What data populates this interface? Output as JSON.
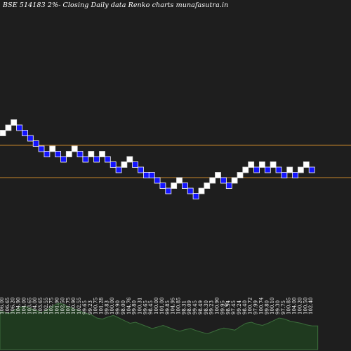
{
  "chart_data": {
    "type": "renko",
    "title": "BSE 514183 2%-  Closing Daily data  Renko  charts munafasutra.in",
    "colors": {
      "background": "#1e1e1e",
      "up_brick": "#ffffff",
      "down_brick": "#1414ff",
      "reference_line": "#c8862a",
      "volume_fill": "#1f3a1f",
      "volume_line": "#3c6e3c"
    },
    "reference_lines": [
      {
        "name": "upper",
        "price": 105.2
      },
      {
        "name": "lower",
        "price": 102.4
      }
    ],
    "bricks": [
      {
        "level": 0,
        "dir": "up"
      },
      {
        "level": 1,
        "dir": "up"
      },
      {
        "level": 2,
        "dir": "up"
      },
      {
        "level": 1,
        "dir": "down"
      },
      {
        "level": 0,
        "dir": "down"
      },
      {
        "level": -1,
        "dir": "down"
      },
      {
        "level": -2,
        "dir": "down"
      },
      {
        "level": -3,
        "dir": "down"
      },
      {
        "level": -4,
        "dir": "down"
      },
      {
        "level": -3,
        "dir": "up"
      },
      {
        "level": -4,
        "dir": "down"
      },
      {
        "level": -5,
        "dir": "down"
      },
      {
        "level": -4,
        "dir": "up"
      },
      {
        "level": -3,
        "dir": "up"
      },
      {
        "level": -4,
        "dir": "down"
      },
      {
        "level": -5,
        "dir": "down"
      },
      {
        "level": -4,
        "dir": "up"
      },
      {
        "level": -5,
        "dir": "down"
      },
      {
        "level": -4,
        "dir": "up"
      },
      {
        "level": -5,
        "dir": "down"
      },
      {
        "level": -6,
        "dir": "down"
      },
      {
        "level": -7,
        "dir": "down"
      },
      {
        "level": -6,
        "dir": "up"
      },
      {
        "level": -5,
        "dir": "up"
      },
      {
        "level": -6,
        "dir": "down"
      },
      {
        "level": -7,
        "dir": "down"
      },
      {
        "level": -8,
        "dir": "down"
      },
      {
        "level": -8,
        "dir": "down"
      },
      {
        "level": -9,
        "dir": "down"
      },
      {
        "level": -10,
        "dir": "down"
      },
      {
        "level": -11,
        "dir": "down"
      },
      {
        "level": -10,
        "dir": "up"
      },
      {
        "level": -9,
        "dir": "up"
      },
      {
        "level": -10,
        "dir": "down"
      },
      {
        "level": -11,
        "dir": "down"
      },
      {
        "level": -12,
        "dir": "down"
      },
      {
        "level": -11,
        "dir": "up"
      },
      {
        "level": -10,
        "dir": "up"
      },
      {
        "level": -9,
        "dir": "up"
      },
      {
        "level": -8,
        "dir": "up"
      },
      {
        "level": -9,
        "dir": "down"
      },
      {
        "level": -10,
        "dir": "down"
      },
      {
        "level": -9,
        "dir": "up"
      },
      {
        "level": -8,
        "dir": "up"
      },
      {
        "level": -7,
        "dir": "up"
      },
      {
        "level": -6,
        "dir": "up"
      },
      {
        "level": -7,
        "dir": "down"
      },
      {
        "level": -6,
        "dir": "up"
      },
      {
        "level": -7,
        "dir": "down"
      },
      {
        "level": -6,
        "dir": "up"
      },
      {
        "level": -7,
        "dir": "down"
      },
      {
        "level": -8,
        "dir": "down"
      },
      {
        "level": -7,
        "dir": "up"
      },
      {
        "level": -8,
        "dir": "down"
      },
      {
        "level": -7,
        "dir": "up"
      },
      {
        "level": -6,
        "dir": "up"
      },
      {
        "level": -7,
        "dir": "down"
      }
    ],
    "price_labels": [
      "106.00",
      "106.65",
      "106.20",
      "104.90",
      "104.00",
      "103.65",
      "104.00",
      "103.65",
      "102.55",
      "102.75",
      "101.90",
      "102.50",
      "101.75",
      "100.90",
      "102.55",
      "99.65",
      "99.23",
      "100.75",
      "101.28",
      "99.83",
      "100.00",
      "99.90",
      "98.00",
      "104.76",
      "99.80",
      "100.31",
      "99.65",
      "98.45",
      "100.00",
      "101.00",
      "99.85",
      "104.95",
      "100.85",
      "98.31",
      "98.09",
      "99.45",
      "98.49",
      "98.30",
      "99.23",
      "100.90",
      "99.95",
      "98.54",
      "97.45",
      "99.24",
      "98.40",
      "100.72",
      "97.99",
      "100.74",
      "99.80",
      "100.10",
      "99.30",
      "97.75",
      "100.85",
      "104.00",
      "100.20",
      "100.50",
      "102.40"
    ],
    "annotation": "0",
    "volume": [
      0.72,
      0.68,
      0.75,
      0.8,
      0.82,
      0.78,
      0.74,
      0.7,
      0.76,
      0.83,
      0.88,
      0.86,
      0.8,
      0.77,
      0.73,
      0.69,
      0.66,
      0.6,
      0.58,
      0.62,
      0.65,
      0.6,
      0.55,
      0.5,
      0.52,
      0.48,
      0.44,
      0.4,
      0.43,
      0.46,
      0.42,
      0.38,
      0.35,
      0.38,
      0.4,
      0.36,
      0.33,
      0.3,
      0.34,
      0.38,
      0.41,
      0.39,
      0.37,
      0.44,
      0.5,
      0.52,
      0.48,
      0.46,
      0.5,
      0.55,
      0.6,
      0.58,
      0.54,
      0.52,
      0.5,
      0.47,
      0.45
    ]
  }
}
